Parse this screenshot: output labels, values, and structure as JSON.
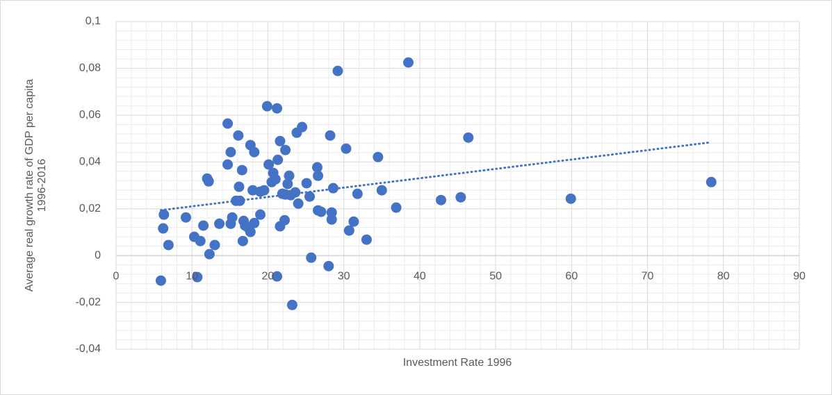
{
  "chart_data": {
    "type": "scatter",
    "xlabel": "Investment Rate 1996",
    "ylabel": "Average real growth rate of GDP per capita 1996-2016",
    "color": "#4472c4",
    "xlim": [
      0,
      90
    ],
    "ylim": [
      -0.04,
      0.1
    ],
    "xticks": [
      0,
      10,
      20,
      30,
      40,
      50,
      60,
      70,
      80,
      90
    ],
    "yticks": [
      {
        "value": -0.04,
        "label": "-0,04"
      },
      {
        "value": -0.02,
        "label": "-0,02"
      },
      0,
      {
        "value": 0.02,
        "label": "0,02"
      },
      {
        "value": 0.04,
        "label": "0,04"
      },
      {
        "value": 0.06,
        "label": "0,06"
      },
      {
        "value": 0.08,
        "label": "0,08"
      },
      {
        "value": 0.1,
        "label": "0,1"
      }
    ],
    "grid": true,
    "minor_grid": true,
    "trendline": true,
    "x": [
      5.9,
      6.3,
      6.2,
      6.9,
      9.2,
      10.3,
      10.7,
      11.1,
      11.5,
      12.0,
      12.2,
      12.3,
      13.0,
      13.6,
      14.7,
      14.7,
      15.1,
      15.1,
      15.3,
      15.8,
      16.1,
      16.2,
      16.3,
      16.6,
      16.7,
      16.8,
      17.0,
      17.3,
      17.7,
      17.7,
      18.0,
      18.2,
      18.2,
      19.0,
      19.0,
      19.5,
      19.9,
      20.1,
      20.5,
      20.7,
      21.0,
      21.2,
      21.2,
      21.3,
      21.6,
      21.6,
      21.9,
      22.2,
      22.3,
      22.3,
      22.6,
      22.8,
      23.0,
      23.2,
      23.6,
      23.8,
      24.0,
      24.5,
      25.1,
      25.5,
      25.7,
      26.5,
      26.6,
      26.6,
      27.0,
      28.0,
      28.2,
      28.4,
      28.4,
      28.6,
      29.2,
      30.3,
      30.7,
      31.3,
      31.8,
      33.0,
      34.5,
      35.0,
      36.9,
      38.5,
      42.8,
      45.4,
      46.4,
      59.9,
      78.4
    ],
    "values": [
      -0.0107,
      0.0175,
      0.0116,
      0.0045,
      0.0163,
      0.008,
      -0.0092,
      0.0062,
      0.0128,
      0.0329,
      0.0317,
      0.0006,
      0.0045,
      0.0136,
      0.0564,
      0.0389,
      0.0442,
      0.0136,
      0.0163,
      0.0234,
      0.0513,
      0.0294,
      0.0234,
      0.0365,
      0.0062,
      0.0148,
      0.0128,
      0.0122,
      0.0472,
      0.0101,
      0.0279,
      0.0442,
      0.0139,
      0.0175,
      0.0273,
      0.0279,
      0.0638,
      0.0389,
      0.0314,
      0.0353,
      0.0326,
      0.0629,
      -0.0089,
      0.0409,
      0.0489,
      0.0125,
      0.0264,
      0.0151,
      0.0451,
      0.0261,
      0.0306,
      0.0341,
      0.0258,
      -0.0211,
      0.027,
      0.0525,
      0.0222,
      0.0549,
      0.0309,
      0.0252,
      -0.0009,
      0.0377,
      0.0341,
      0.0193,
      0.0187,
      -0.0045,
      0.0513,
      0.0184,
      0.0154,
      0.0288,
      0.0789,
      0.0457,
      0.0107,
      0.0145,
      0.0264,
      0.0068,
      0.0421,
      0.0279,
      0.0205,
      0.0825,
      0.0237,
      0.0249,
      0.0504,
      0.0243,
      0.0314
    ]
  }
}
